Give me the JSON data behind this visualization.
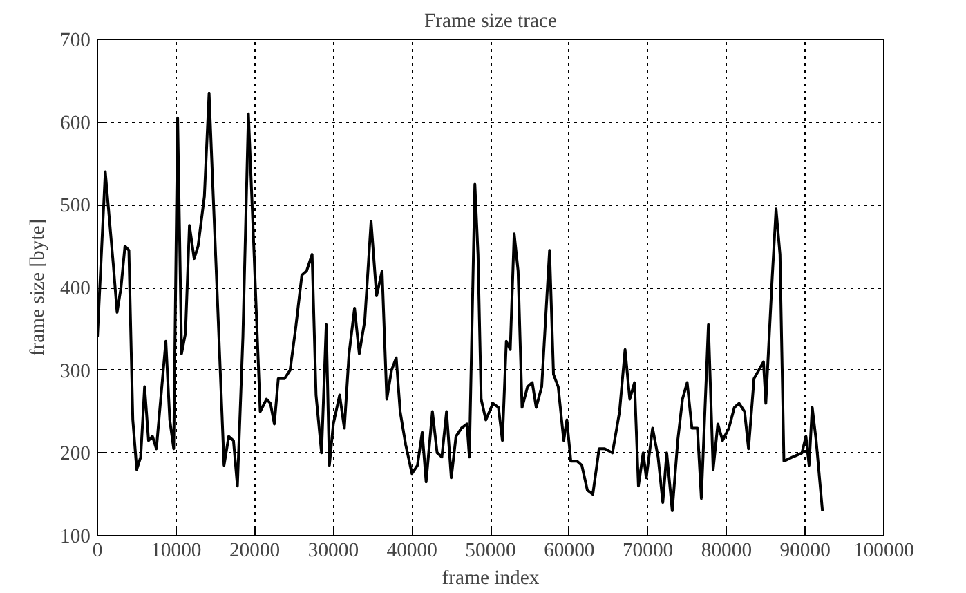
{
  "chart_data": {
    "type": "line",
    "title": "Frame size trace",
    "xlabel": "frame index",
    "ylabel": "frame size [byte]",
    "xlim": [
      0,
      100000
    ],
    "ylim": [
      100,
      700
    ],
    "xticks": [
      0,
      10000,
      20000,
      30000,
      40000,
      50000,
      60000,
      70000,
      80000,
      90000,
      100000
    ],
    "yticks": [
      100,
      200,
      300,
      400,
      500,
      600,
      700
    ],
    "grid": true,
    "marker": "none",
    "line_style": "solid",
    "x": [
      0,
      1000,
      2000,
      2500,
      3000,
      3500,
      4000,
      4500,
      5000,
      5500,
      6000,
      6500,
      7000,
      7500,
      8000,
      8700,
      9200,
      9700,
      10200,
      10700,
      11200,
      11700,
      12300,
      12800,
      13600,
      14200,
      14600,
      15200,
      16100,
      16700,
      17300,
      17800,
      18500,
      19200,
      19800,
      20700,
      21500,
      22000,
      22500,
      23000,
      23800,
      24500,
      25200,
      26000,
      26600,
      27300,
      27800,
      28500,
      29100,
      29500,
      30000,
      30800,
      31400,
      32000,
      32700,
      33300,
      34000,
      34800,
      35500,
      36200,
      36800,
      37400,
      38000,
      38500,
      39200,
      40000,
      40700,
      41300,
      41800,
      42600,
      43200,
      43800,
      44400,
      45000,
      45600,
      46300,
      47000,
      47300,
      48000,
      48400,
      48800,
      49400,
      50300,
      51000,
      51500,
      52000,
      52500,
      53000,
      53500,
      54000,
      54700,
      55300,
      55800,
      56500,
      57500,
      58000,
      58600,
      59300,
      59700,
      60200,
      61000,
      61600,
      62300,
      63000,
      63800,
      64500,
      65500,
      66400,
      67100,
      67700,
      68300,
      68800,
      69400,
      69800,
      70600,
      71300,
      71900,
      72400,
      73100,
      73800,
      74400,
      75000,
      75600,
      76300,
      76800,
      77700,
      78300,
      78900,
      79500,
      80300,
      81000,
      81600,
      82300,
      82800,
      83500,
      84100,
      84700,
      85000,
      85800,
      86300,
      86800,
      87300,
      88400,
      89600,
      90100,
      90500,
      90900,
      91400,
      92200
    ],
    "series": [
      {
        "color": "#000000",
        "values": [
          340,
          540,
          430,
          370,
          400,
          450,
          445,
          240,
          180,
          195,
          280,
          215,
          220,
          205,
          260,
          335,
          240,
          205,
          605,
          320,
          345,
          475,
          435,
          450,
          510,
          635,
          540,
          400,
          185,
          220,
          215,
          160,
          340,
          610,
          470,
          250,
          265,
          260,
          235,
          290,
          290,
          300,
          350,
          415,
          420,
          440,
          270,
          200,
          355,
          185,
          235,
          270,
          230,
          320,
          375,
          320,
          360,
          480,
          390,
          420,
          265,
          300,
          315,
          250,
          210,
          175,
          185,
          225,
          165,
          250,
          200,
          195,
          250,
          170,
          220,
          230,
          235,
          195,
          525,
          440,
          265,
          240,
          260,
          255,
          215,
          335,
          325,
          465,
          420,
          255,
          280,
          285,
          255,
          280,
          445,
          295,
          280,
          215,
          240,
          190,
          190,
          185,
          155,
          150,
          205,
          205,
          200,
          250,
          325,
          265,
          285,
          160,
          200,
          170,
          230,
          195,
          140,
          200,
          130,
          215,
          265,
          285,
          230,
          230,
          145,
          355,
          180,
          235,
          215,
          230,
          255,
          260,
          250,
          205,
          290,
          300,
          310,
          260,
          410,
          495,
          440,
          190,
          195,
          200,
          220,
          185,
          255,
          215,
          130
        ]
      }
    ]
  }
}
